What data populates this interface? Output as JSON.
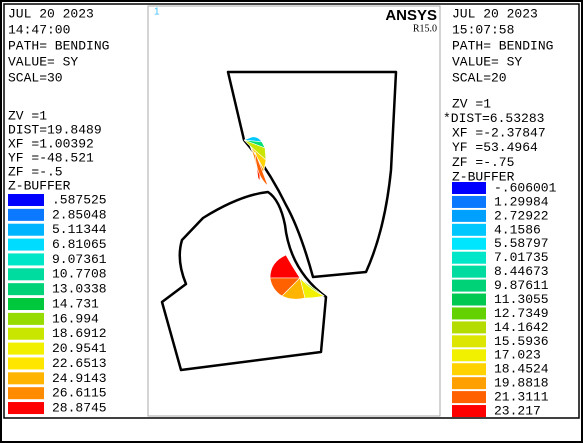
{
  "left_panel": {
    "header": [
      "JUL 20 2023",
      "14:47:00",
      "PATH=  BENDING",
      "VALUE= SY",
      "SCAL=30"
    ],
    "view": [
      "ZV  =1",
      "DIST=19.8489",
      "XF  =1.00392",
      "YF  =-48.521",
      "ZF  =-.5",
      "Z-BUFFER"
    ],
    "legend": [
      {
        "label": ".587525",
        "color": "#0000ff"
      },
      {
        "label": "2.85048",
        "color": "#0a78ff"
      },
      {
        "label": "5.11344",
        "color": "#00b4ff"
      },
      {
        "label": "6.81065",
        "color": "#00dcff"
      },
      {
        "label": "9.07361",
        "color": "#00e6c8"
      },
      {
        "label": "10.7708",
        "color": "#00dca0"
      },
      {
        "label": "13.0338",
        "color": "#00d278"
      },
      {
        "label": "14.731",
        "color": "#00c83c"
      },
      {
        "label": "16.994",
        "color": "#96dc00"
      },
      {
        "label": "18.6912",
        "color": "#c8e600"
      },
      {
        "label": "20.9541",
        "color": "#f0f000"
      },
      {
        "label": "22.6513",
        "color": "#ffe600"
      },
      {
        "label": "24.9143",
        "color": "#ffb400"
      },
      {
        "label": "26.6115",
        "color": "#ff8c00"
      },
      {
        "label": "28.8745",
        "color": "#ff0000"
      }
    ]
  },
  "viewport": {
    "window_number": "1",
    "brand": "ANSYS",
    "version": "R15.0"
  },
  "right_panel": {
    "header": [
      "JUL 20 2023",
      "15:07:58",
      "PATH=  BENDING",
      "VALUE= SY",
      "SCAL=20"
    ],
    "view": [
      "ZV  =1",
      "*DIST=6.53283",
      "XF  =-2.37847",
      "YF  =53.4964",
      "ZF  =-.75",
      "Z-BUFFER"
    ],
    "legend": [
      {
        "label": "-.606001",
        "color": "#0000ff"
      },
      {
        "label": "1.29984",
        "color": "#0a78ff"
      },
      {
        "label": "2.72922",
        "color": "#00a0ff"
      },
      {
        "label": "4.1586",
        "color": "#00c8ff"
      },
      {
        "label": "5.58797",
        "color": "#00e6ff"
      },
      {
        "label": "7.01735",
        "color": "#00e6c8"
      },
      {
        "label": "8.44673",
        "color": "#00dca0"
      },
      {
        "label": "9.87611",
        "color": "#00d278"
      },
      {
        "label": "11.3055",
        "color": "#00c850"
      },
      {
        "label": "12.7349",
        "color": "#64d200"
      },
      {
        "label": "14.1642",
        "color": "#b4dc00"
      },
      {
        "label": "15.5936",
        "color": "#dce600"
      },
      {
        "label": "17.023",
        "color": "#f0f000"
      },
      {
        "label": "18.4524",
        "color": "#ffd200"
      },
      {
        "label": "19.8818",
        "color": "#ffa000"
      },
      {
        "label": "21.3111",
        "color": "#ff6000"
      },
      {
        "label": "23.217",
        "color": "#ff0000"
      }
    ]
  }
}
